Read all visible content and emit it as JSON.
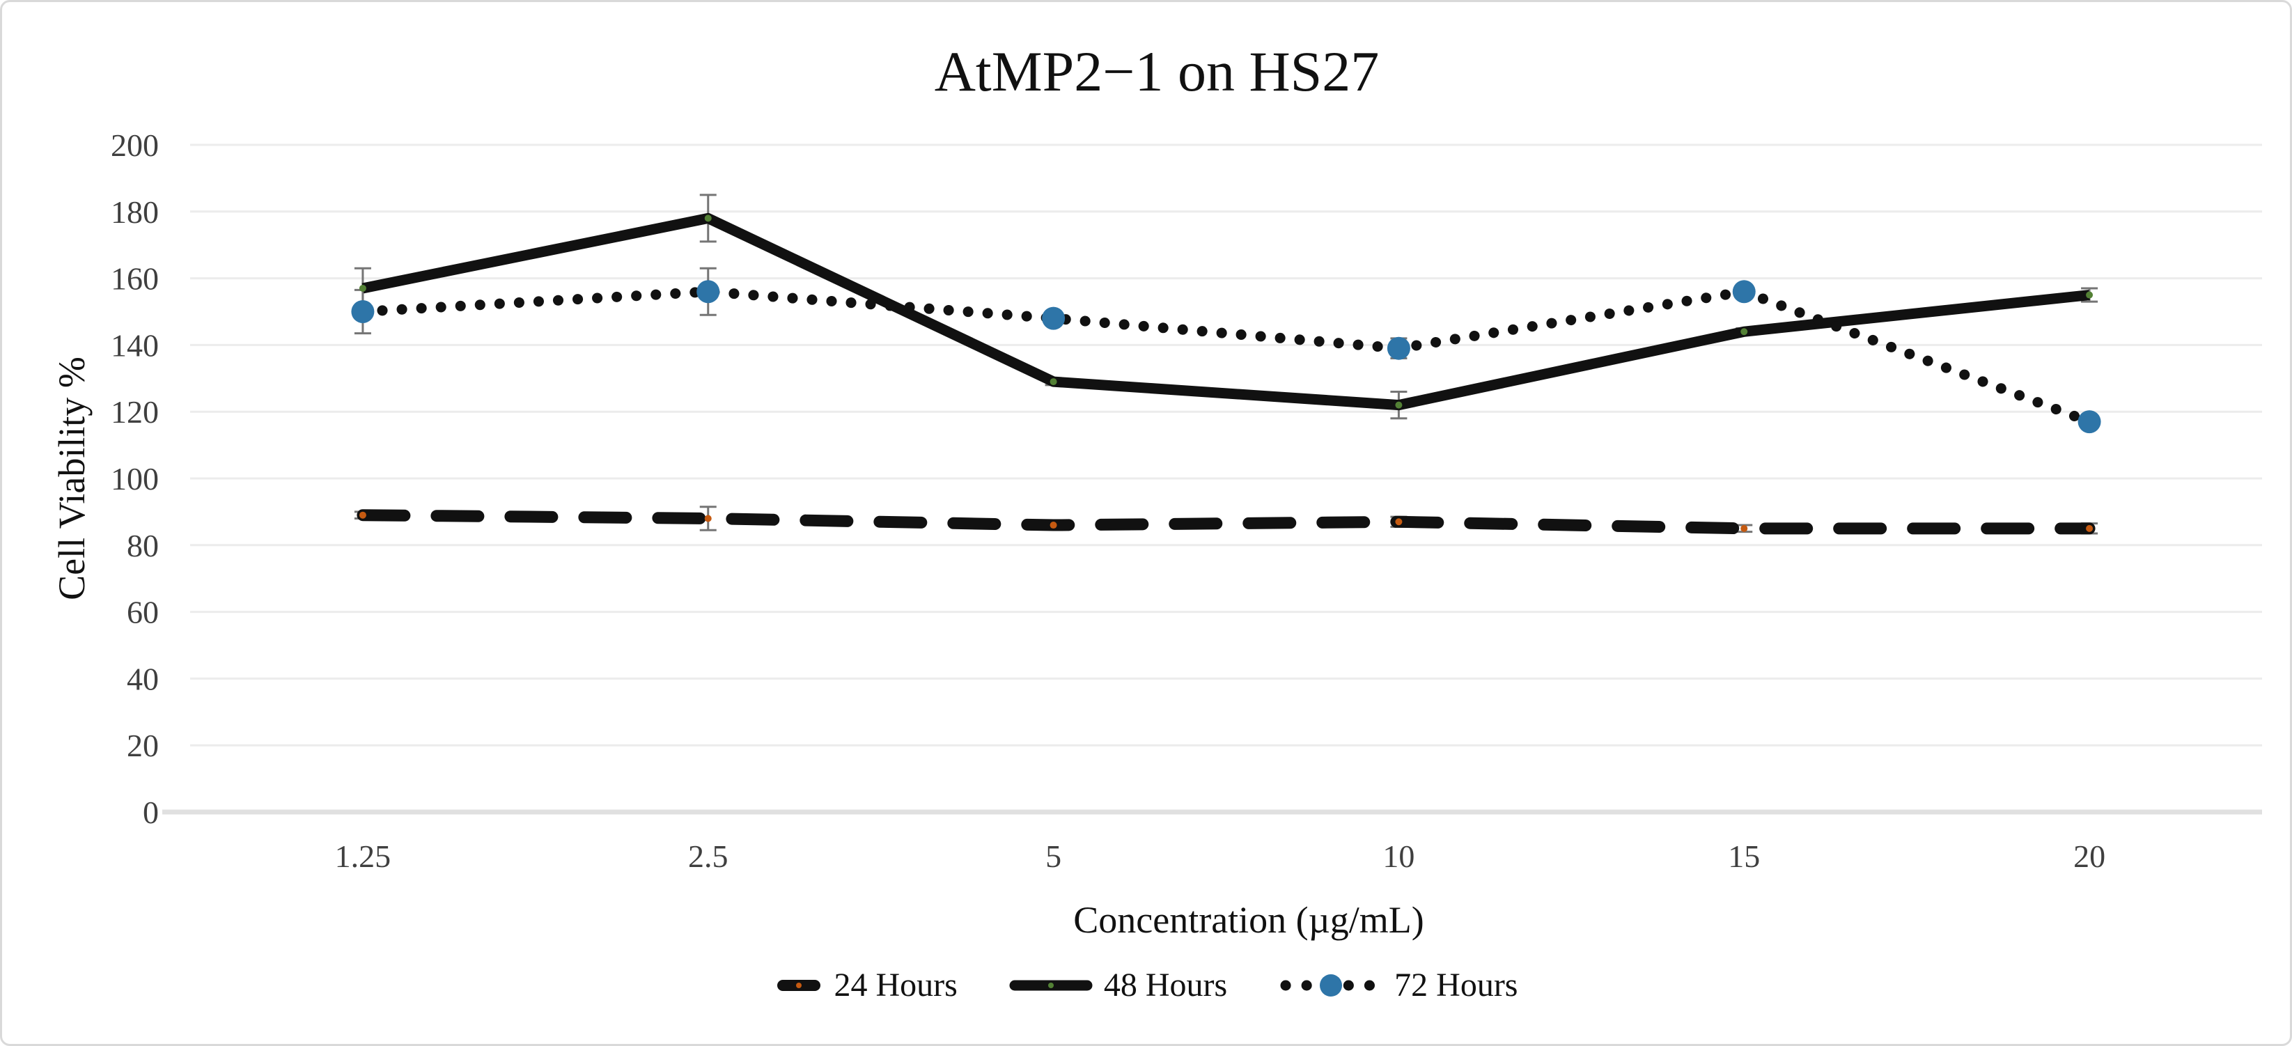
{
  "figure": {
    "background": "#ffffff",
    "border_color": "#d9d9d9"
  },
  "chart_data": {
    "type": "line",
    "title": "AtMP2−1 on HS27",
    "xlabel": "Concentration (µg/mL)",
    "ylabel": "Cell Viability %",
    "categories": [
      "1.25",
      "2.5",
      "5",
      "10",
      "15",
      "20"
    ],
    "ylim": [
      0,
      200
    ],
    "yticks": [
      0,
      20,
      40,
      60,
      80,
      100,
      120,
      140,
      160,
      180,
      200
    ],
    "grid": true,
    "legend_position": "bottom-center",
    "line_color": "#111111",
    "grid_color": "#ececec",
    "axis_line_color": "#e0e0e0",
    "error_bar_color": "#757575",
    "series": [
      {
        "name": "24 Hours",
        "style": "dashed",
        "marker_color": "#c55a11",
        "values": [
          89,
          88,
          86,
          87,
          85,
          85
        ],
        "errors": [
          1,
          3.5,
          1,
          1.5,
          1,
          1.5
        ]
      },
      {
        "name": "48 Hours",
        "style": "solid",
        "marker_color": "#538135",
        "values": [
          157,
          178,
          129,
          122,
          144,
          155
        ],
        "errors": [
          6,
          7,
          1,
          4,
          1,
          2
        ]
      },
      {
        "name": "72 Hours",
        "style": "dotted",
        "marker_color": "#2e75a8",
        "values": [
          150,
          156,
          148,
          139,
          156,
          117
        ],
        "errors": [
          6.5,
          7,
          1,
          3,
          1,
          1
        ]
      }
    ]
  }
}
